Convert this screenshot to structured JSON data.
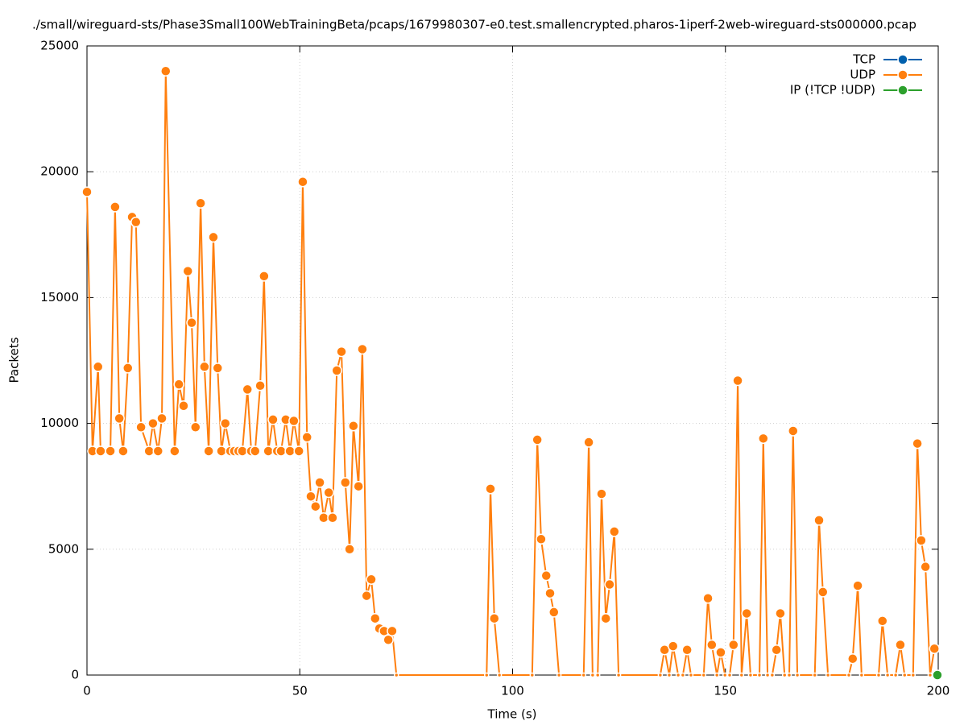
{
  "chart_data": {
    "type": "line",
    "title": "./small/wireguard-sts/Phase3Small100WebTrainingBeta/pcaps/1679980307-e0.test.smallencrypted.pharos-1iperf-2web-wireguard-sts000000.pcap",
    "xlabel": "Time (s)",
    "ylabel": "Packets",
    "xlim": [
      0,
      200
    ],
    "ylim": [
      0,
      25000
    ],
    "xticks": [
      0,
      50,
      100,
      150,
      200
    ],
    "yticks": [
      0,
      5000,
      10000,
      15000,
      20000,
      25000
    ],
    "grid": true,
    "legend": "upper right",
    "series": [
      {
        "name": "TCP",
        "color": "#0060ad",
        "x": [],
        "values": []
      },
      {
        "name": "UDP",
        "color": "#ff7f0e",
        "x": [
          0,
          1.3,
          2.6,
          3.2,
          5.5,
          6.6,
          7.6,
          8.5,
          9.6,
          10.6,
          11.5,
          12.7,
          14.6,
          15.5,
          16.7,
          17.6,
          18.5,
          20.6,
          21.6,
          22.7,
          23.7,
          24.6,
          25.5,
          26.7,
          27.6,
          28.6,
          29.7,
          30.7,
          31.6,
          32.5,
          33.7,
          34.6,
          35.6,
          36.5,
          37.7,
          38.6,
          39.5,
          40.7,
          41.6,
          42.6,
          43.7,
          44.7,
          45.6,
          46.7,
          47.7,
          48.6,
          49.8,
          50.7,
          51.7,
          52.6,
          53.7,
          54.7,
          55.6,
          56.8,
          57.7,
          58.7,
          59.8,
          60.7,
          61.7,
          62.6,
          63.8,
          64.7,
          65.7,
          66.8,
          67.7,
          68.7,
          69.8,
          70.8,
          71.7,
          72.7,
          93.9,
          94.8,
          95.7,
          96.9,
          104.6,
          105.8,
          106.7,
          107.9,
          108.8,
          109.7,
          110.9,
          116.7,
          117.9,
          118.8,
          120.0,
          120.9,
          121.9,
          122.8,
          123.9,
          124.9,
          134.7,
          135.7,
          136.8,
          137.7,
          138.9,
          140.0,
          141.0,
          141.9,
          144.9,
          145.9,
          146.8,
          148.0,
          148.9,
          149.9,
          151.0,
          151.9,
          152.9,
          153.8,
          155.0,
          155.9,
          158.0,
          158.9,
          159.9,
          161.0,
          162.0,
          162.9,
          163.9,
          165.0,
          165.9,
          166.9,
          171.0,
          172.0,
          172.9,
          174.1,
          179.0,
          179.9,
          181.1,
          182.0,
          186.0,
          186.9,
          188.1,
          190.0,
          191.1,
          192.1,
          194.1,
          195.1,
          196.0,
          197.0,
          198.1,
          199.1
        ],
        "values": [
          19200,
          8900,
          12250,
          8900,
          8900,
          18600,
          10200,
          8900,
          12200,
          18200,
          18000,
          9850,
          8900,
          10000,
          8900,
          10200,
          24000,
          8900,
          11550,
          10700,
          16050,
          14000,
          9850,
          18750,
          12250,
          8900,
          17400,
          12200,
          8900,
          10000,
          8900,
          8900,
          8900,
          8900,
          11350,
          8900,
          8900,
          11500,
          15850,
          8900,
          10150,
          8900,
          8900,
          10150,
          8900,
          10100,
          8900,
          19600,
          9450,
          7100,
          6700,
          7650,
          6250,
          7250,
          6250,
          12100,
          12850,
          7650,
          5000,
          9900,
          7500,
          12950,
          3150,
          3800,
          2250,
          1850,
          1750,
          1400,
          1750,
          0,
          0,
          7400,
          2250,
          0,
          0,
          9350,
          5400,
          3950,
          3250,
          2500,
          0,
          0,
          9250,
          0,
          0,
          7200,
          2250,
          3600,
          5700,
          0,
          0,
          1000,
          0,
          1150,
          0,
          0,
          1000,
          0,
          0,
          3050,
          1200,
          0,
          900,
          0,
          0,
          1200,
          11700,
          0,
          2450,
          0,
          0,
          9400,
          0,
          0,
          1000,
          2450,
          0,
          0,
          9700,
          0,
          0,
          6150,
          3300,
          0,
          0,
          650,
          3550,
          0,
          0,
          2150,
          0,
          0,
          1200,
          0,
          0,
          9200,
          5350,
          4300,
          0,
          1050
        ]
      },
      {
        "name": "IP (!TCP  !UDP)",
        "color": "#2ca02c",
        "x": [
          199.8
        ],
        "values": [
          0
        ]
      }
    ]
  }
}
